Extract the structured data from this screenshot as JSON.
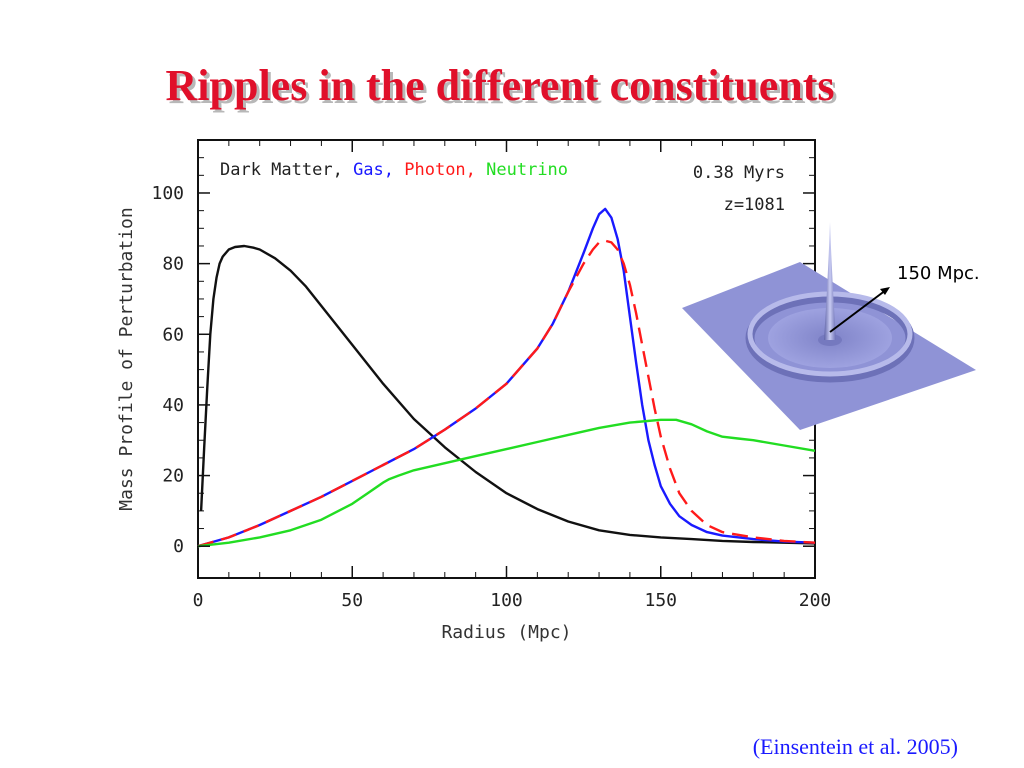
{
  "slide": {
    "title": "Ripples in the different constituents",
    "citation": "(Einsentein et al. 2005)",
    "scale_label": "150 Mpc."
  },
  "chart_data": {
    "type": "line",
    "xlabel": "Radius (Mpc)",
    "ylabel": "Mass Profile of Perturbation",
    "xlim": [
      0,
      200
    ],
    "ylim": [
      -9,
      115
    ],
    "xticks": [
      0,
      50,
      100,
      150,
      200
    ],
    "yticks": [
      0,
      20,
      40,
      60,
      80,
      100
    ],
    "grid": false,
    "annotations": [
      "0.38 Myrs",
      "z=1081"
    ],
    "legend_items": [
      {
        "label": "Dark Matter,",
        "color": "#222222"
      },
      {
        "label": "Gas,",
        "color": "#1a1aff"
      },
      {
        "label": "Photon,",
        "color": "#ff1a1a"
      },
      {
        "label": "Neutrino",
        "color": "#22dd22"
      }
    ],
    "series": [
      {
        "name": "Dark Matter",
        "color": "#111111",
        "dash": false,
        "x": [
          1,
          2,
          3,
          4,
          5,
          6,
          7,
          8,
          10,
          12,
          15,
          18,
          20,
          25,
          30,
          35,
          40,
          50,
          60,
          70,
          80,
          90,
          100,
          110,
          120,
          130,
          140,
          150,
          160,
          170,
          180,
          190,
          200
        ],
        "y": [
          10,
          28,
          45,
          60,
          70,
          76,
          80,
          82,
          84,
          84.7,
          85,
          84.5,
          84,
          81.5,
          78,
          73.5,
          68,
          57,
          46,
          36,
          28,
          21,
          15,
          10.5,
          7,
          4.5,
          3.2,
          2.5,
          2,
          1.5,
          1.2,
          1,
          0.8
        ]
      },
      {
        "name": "Gas",
        "color": "#1a1aff",
        "dash": false,
        "x": [
          0,
          10,
          20,
          30,
          40,
          50,
          60,
          70,
          80,
          90,
          100,
          110,
          115,
          120,
          125,
          128,
          130,
          132,
          134,
          136,
          138,
          140,
          142,
          144,
          146,
          148,
          150,
          153,
          156,
          160,
          165,
          170,
          180,
          190,
          200
        ],
        "y": [
          0,
          2.5,
          6,
          10,
          14,
          18.5,
          23,
          27.5,
          33,
          39,
          46,
          56,
          63,
          72,
          83,
          90,
          94,
          95.5,
          93,
          87,
          78,
          65,
          52,
          40,
          30,
          23,
          17,
          12,
          8.5,
          6,
          4,
          3,
          2,
          1.3,
          1
        ]
      },
      {
        "name": "Photon",
        "color": "#ff1a1a",
        "dash": true,
        "x": [
          0,
          10,
          20,
          30,
          40,
          50,
          60,
          70,
          80,
          90,
          100,
          110,
          115,
          120,
          125,
          128,
          130,
          132,
          134,
          136,
          138,
          140,
          142,
          144,
          146,
          148,
          150,
          153,
          156,
          160,
          165,
          170,
          180,
          190,
          200
        ],
        "y": [
          0,
          2.5,
          6,
          10,
          14,
          18.5,
          23,
          27.5,
          33,
          39,
          46,
          56,
          63,
          72,
          80,
          84,
          86,
          86.5,
          86,
          84,
          80,
          74,
          66,
          57,
          48,
          39,
          31,
          22,
          15,
          10,
          6,
          4,
          2.5,
          1.5,
          1
        ]
      },
      {
        "name": "Neutrino",
        "color": "#22dd22",
        "dash": false,
        "x": [
          0,
          10,
          20,
          30,
          40,
          50,
          55,
          60,
          62,
          65,
          70,
          80,
          90,
          100,
          110,
          120,
          130,
          140,
          150,
          155,
          160,
          165,
          170,
          175,
          180,
          190,
          200
        ],
        "y": [
          0,
          1,
          2.5,
          4.5,
          7.5,
          12,
          15,
          18,
          19,
          20,
          21.5,
          23.5,
          25.5,
          27.5,
          29.5,
          31.5,
          33.5,
          35,
          35.8,
          35.8,
          34.5,
          32.5,
          31,
          30.5,
          30,
          28.5,
          27
        ]
      }
    ]
  },
  "ripple_image": {
    "color": "#8f93d6"
  }
}
